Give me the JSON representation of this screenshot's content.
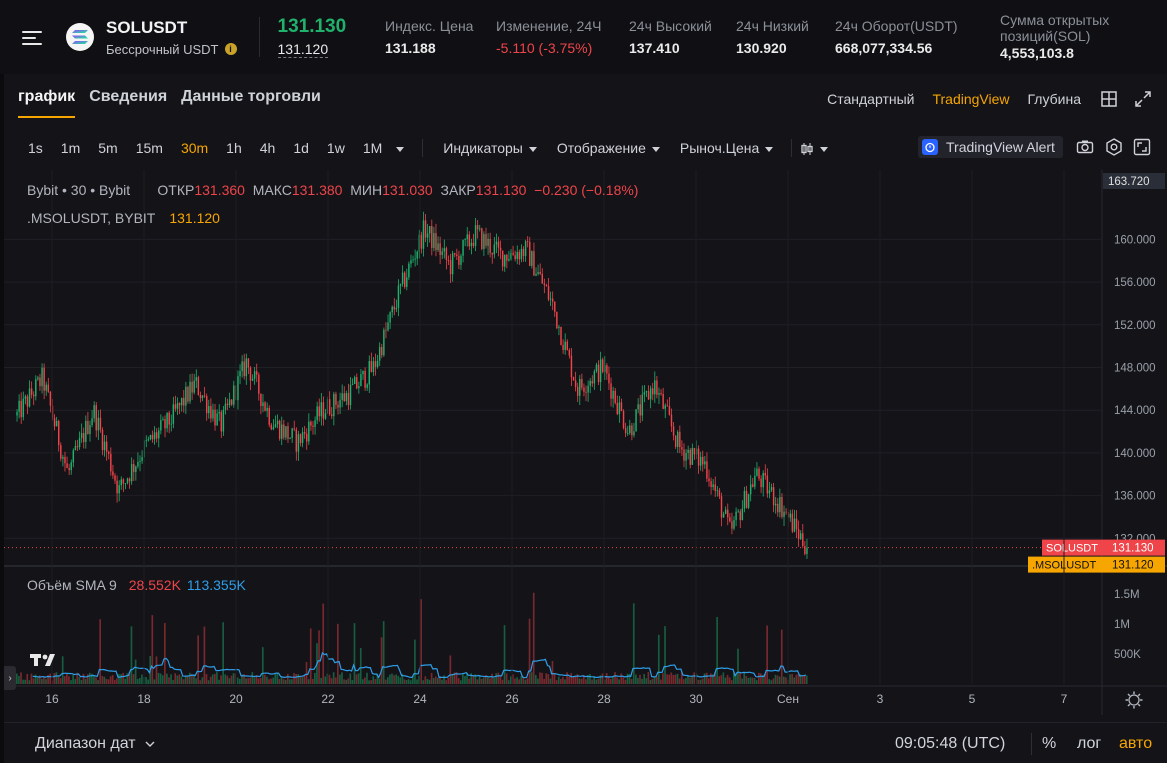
{
  "header": {
    "symbol": "SOLUSDT",
    "subtitle": "Бессрочный USDT",
    "info_glyph": "i",
    "last_price": "131.130",
    "mark_price": "131.120",
    "stats": [
      {
        "label": "Индекс. Цена",
        "value": "131.188",
        "negative": false
      },
      {
        "label": "Изменение, 24Ч",
        "value": "-5.110 (-3.75%)",
        "negative": true
      },
      {
        "label": "24ч Высокий",
        "value": "137.410",
        "negative": false
      },
      {
        "label": "24ч Низкий",
        "value": "130.920",
        "negative": false
      },
      {
        "label": "24ч Оборот(USDT)",
        "value": "668,077,334.56",
        "negative": false
      }
    ],
    "open_interest_label_1": "Сумма открытых",
    "open_interest_label_2": "позиций(SOL)",
    "open_interest_value": "4,553,103.8"
  },
  "tabs": [
    "график",
    "Сведения",
    "Данные торговли"
  ],
  "views": [
    "Стандартный",
    "TradingView",
    "Глубина"
  ],
  "active_view": 1,
  "timeframes": [
    "1s",
    "1m",
    "5m",
    "15m",
    "30m",
    "1h",
    "4h",
    "1d",
    "1w",
    "1M"
  ],
  "active_timeframe": 4,
  "toolbar": {
    "indicators": "Индикаторы",
    "display": "Отображение",
    "market_price": "Рыноч.Цена",
    "alert": "TradingView Alert"
  },
  "legend": {
    "source": "Bybit • 30 • Bybit",
    "o_label": "ОТКР",
    "o": "131.360",
    "h_label": "МАКС",
    "h": "131.380",
    "l_label": "МИН",
    "l": "131.030",
    "c_label": "ЗАКР",
    "c": "131.130",
    "change": "−0.230 (−0.18%)",
    "index_label": ".MSOLUSDT, BYBIT",
    "index_value": "131.120",
    "volume_label": "Объём SMA 9",
    "volume_value": "28.552K",
    "sma_value": "113.355K"
  },
  "price_axis": {
    "top_label": "163.720",
    "ticks": [
      "160.000",
      "156.000",
      "152.000",
      "148.000",
      "144.000",
      "140.000",
      "136.000",
      "132.000"
    ],
    "tick_values": [
      160,
      156,
      152,
      148,
      144,
      140,
      136,
      132
    ],
    "range": [
      129.5,
      166.5
    ],
    "last_tag_label": "SOLUSDT",
    "last_tag_value": "131.130",
    "index_tag_label": ".MSOLUSDT",
    "index_tag_value": "131.120"
  },
  "volume_axis": {
    "ticks": [
      "1.5M",
      "1M",
      "500K"
    ],
    "tick_values": [
      1500000,
      1000000,
      500000
    ],
    "max": 1900000
  },
  "time_axis": {
    "ticks": [
      "16",
      "18",
      "20",
      "22",
      "24",
      "26",
      "28",
      "30",
      "Сен",
      "3",
      "5",
      "7"
    ]
  },
  "footer": {
    "date_range": "Диапазон дат",
    "clock": "09:05:48 (UTC)",
    "percent": "%",
    "log": "лог",
    "auto": "авто"
  },
  "colors": {
    "up": "#20b26c",
    "down": "#ef454a",
    "accent": "#f7a600",
    "sma": "#2f9ee8"
  },
  "chart_data": {
    "type": "candlestick",
    "interval": "30m",
    "key_prices": [
      {
        "date": "15",
        "price": 143.5
      },
      {
        "date": "15",
        "price": 147.0
      },
      {
        "date": "16",
        "price": 138.0
      },
      {
        "date": "16",
        "price": 144.0
      },
      {
        "date": "16",
        "price": 136.5
      },
      {
        "date": "17",
        "price": 140.5
      },
      {
        "date": "18",
        "price": 143.0
      },
      {
        "date": "18",
        "price": 146.5
      },
      {
        "date": "19",
        "price": 142.5
      },
      {
        "date": "20",
        "price": 148.5
      },
      {
        "date": "21",
        "price": 143.0
      },
      {
        "date": "22",
        "price": 141.0
      },
      {
        "date": "22",
        "price": 144.0
      },
      {
        "date": "23",
        "price": 145.5
      },
      {
        "date": "24",
        "price": 148.0
      },
      {
        "date": "24",
        "price": 155.0
      },
      {
        "date": "24",
        "price": 161.0
      },
      {
        "date": "25",
        "price": 157.5
      },
      {
        "date": "25",
        "price": 160.5
      },
      {
        "date": "26",
        "price": 158.5
      },
      {
        "date": "27",
        "price": 159.0
      },
      {
        "date": "27",
        "price": 154.0
      },
      {
        "date": "28",
        "price": 146.0
      },
      {
        "date": "28",
        "price": 148.0
      },
      {
        "date": "29",
        "price": 142.0
      },
      {
        "date": "29",
        "price": 146.5
      },
      {
        "date": "30",
        "price": 140.5
      },
      {
        "date": "30",
        "price": 139.0
      },
      {
        "date": "31",
        "price": 132.5
      },
      {
        "date": "31",
        "price": 138.0
      },
      {
        "date": "Сен",
        "price": 135.0
      },
      {
        "date": "Сен",
        "price": 131.13
      }
    ]
  }
}
